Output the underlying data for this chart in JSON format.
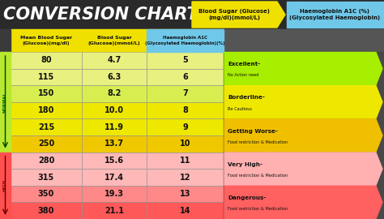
{
  "title": "CONVERSION CHART",
  "header_bg": "#2a2a2a",
  "title_color": "#ffffff",
  "arrow1_text": "Blood Sugar (Glucose)\n(mg/dl)(mmol/L)",
  "arrow1_color": "#f0e000",
  "arrow2_text": "Haemoglobin A1C (%)\n(Glycosylated Haemoglobin)",
  "arrow2_color": "#70c8e8",
  "col_headers": [
    "Mean Blood Sugar\n(Glucose)(mg/dl)",
    "Blood Sugar\n(Glucose)(mmol/L)",
    "Haemoglobin A1C\n(Glycosylated Haemoglobin)(%)"
  ],
  "col_header_bg": "#f0e000",
  "col_header3_bg": "#70c8e8",
  "rows": [
    {
      "mg": "80",
      "mmol": "4.7",
      "hba1c": "5"
    },
    {
      "mg": "115",
      "mmol": "6.3",
      "hba1c": "6"
    },
    {
      "mg": "150",
      "mmol": "8.2",
      "hba1c": "7"
    },
    {
      "mg": "180",
      "mmol": "10.0",
      "hba1c": "8"
    },
    {
      "mg": "215",
      "mmol": "11.9",
      "hba1c": "9"
    },
    {
      "mg": "250",
      "mmol": "13.7",
      "hba1c": "10"
    },
    {
      "mg": "280",
      "mmol": "15.6",
      "hba1c": "11"
    },
    {
      "mg": "315",
      "mmol": "17.4",
      "hba1c": "12"
    },
    {
      "mg": "350",
      "mmol": "19.3",
      "hba1c": "13"
    },
    {
      "mg": "380",
      "mmol": "21.1",
      "hba1c": "14"
    }
  ],
  "row_colors": [
    "#e8f080",
    "#e8f080",
    "#d8ee50",
    "#eee800",
    "#eee800",
    "#f0c800",
    "#ffb8b8",
    "#ffb8b8",
    "#ff8888",
    "#ff5858"
  ],
  "normal_color": "#b8e830",
  "high_color": "#ff5050",
  "normal_text_color": "#006600",
  "high_text_color": "#880000",
  "status_bgs": [
    "#a8ee00",
    "#eee800",
    "#f0c000",
    "#ffb0b0",
    "#ff6060"
  ],
  "status_titles": [
    "Excellent-",
    "Borderline-",
    "Getting Worse-",
    "Very High-",
    "Dangerous-"
  ],
  "status_subs": [
    "No Action need",
    "Be Cautious",
    "Food restriction & Medication",
    "Food restriction & Medication",
    "Food restriction & Medication"
  ],
  "bg_color": "#484848"
}
